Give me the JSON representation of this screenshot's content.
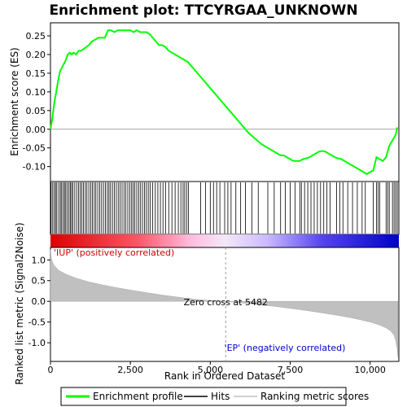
{
  "chart_data": {
    "type": "line",
    "title": "Enrichment plot: TTCYRGAA_UNKNOWN",
    "xlabel": "Rank in Ordered Dataset",
    "ylabel_top": "Enrichment score (ES)",
    "ylabel_bottom": "Ranked list metric (Signal2Noise)",
    "x_range": [
      0,
      10900
    ],
    "x_ticks": [
      0,
      2500,
      5000,
      7500,
      10000
    ],
    "x_tick_labels": [
      "0",
      "2,500",
      "5,000",
      "7,500",
      "10,000"
    ],
    "es_ylim": [
      -0.14,
      0.285
    ],
    "es_ticks": [
      -0.1,
      -0.05,
      0.0,
      0.05,
      0.1,
      0.15,
      0.2,
      0.25
    ],
    "es_tick_labels": [
      "-0.10",
      "-0.05",
      "0.00",
      "0.05",
      "0.10",
      "0.15",
      "0.20",
      "0.25"
    ],
    "metric_ylim": [
      -1.45,
      1.3
    ],
    "metric_ticks": [
      -1.0,
      -0.5,
      0.0,
      0.5,
      1.0
    ],
    "metric_tick_labels": [
      "-1.0",
      "-0.5",
      "0.0",
      "0.5",
      "1.0"
    ],
    "grid": false,
    "enrichment_profile": {
      "name": "Enrichment profile",
      "color": "#00ff00",
      "x": [
        0,
        60,
        120,
        180,
        240,
        300,
        360,
        420,
        480,
        540,
        600,
        660,
        720,
        800,
        880,
        960,
        1040,
        1120,
        1200,
        1300,
        1400,
        1500,
        1600,
        1700,
        1800,
        1900,
        2000,
        2100,
        2200,
        2300,
        2400,
        2500,
        2600,
        2700,
        2800,
        2900,
        3000,
        3100,
        3200,
        3300,
        3400,
        3500,
        3600,
        3700,
        3800,
        3900,
        4000,
        4100,
        4200,
        4300,
        4400,
        4600,
        4800,
        5000,
        5200,
        5400,
        5600,
        5800,
        6000,
        6200,
        6400,
        6600,
        6800,
        7000,
        7100,
        7200,
        7300,
        7400,
        7500,
        7600,
        7700,
        7800,
        7900,
        8000,
        8100,
        8200,
        8300,
        8400,
        8500,
        8600,
        8700,
        8800,
        8900,
        9000,
        9100,
        9200,
        9300,
        9400,
        9500,
        9600,
        9700,
        9800,
        9900,
        10000,
        10100,
        10200,
        10300,
        10400,
        10500,
        10600,
        10700,
        10800,
        10850
      ],
      "y": [
        0.0,
        0.03,
        0.07,
        0.1,
        0.13,
        0.155,
        0.165,
        0.175,
        0.185,
        0.2,
        0.205,
        0.2,
        0.205,
        0.2,
        0.21,
        0.21,
        0.215,
        0.22,
        0.225,
        0.235,
        0.24,
        0.245,
        0.245,
        0.245,
        0.265,
        0.265,
        0.26,
        0.265,
        0.265,
        0.265,
        0.265,
        0.265,
        0.26,
        0.265,
        0.26,
        0.26,
        0.26,
        0.255,
        0.245,
        0.235,
        0.225,
        0.225,
        0.22,
        0.21,
        0.205,
        0.2,
        0.195,
        0.19,
        0.185,
        0.18,
        0.17,
        0.15,
        0.13,
        0.11,
        0.09,
        0.07,
        0.05,
        0.03,
        0.01,
        -0.01,
        -0.025,
        -0.04,
        -0.05,
        -0.06,
        -0.065,
        -0.07,
        -0.07,
        -0.075,
        -0.08,
        -0.085,
        -0.085,
        -0.085,
        -0.08,
        -0.078,
        -0.075,
        -0.07,
        -0.065,
        -0.06,
        -0.058,
        -0.06,
        -0.065,
        -0.07,
        -0.075,
        -0.078,
        -0.08,
        -0.085,
        -0.09,
        -0.095,
        -0.1,
        -0.105,
        -0.11,
        -0.115,
        -0.12,
        -0.115,
        -0.11,
        -0.075,
        -0.08,
        -0.085,
        -0.075,
        -0.045,
        -0.03,
        -0.015,
        0.005
      ]
    },
    "hits_label": "Hits",
    "hit_ranks": [
      20,
      70,
      120,
      160,
      200,
      260,
      310,
      350,
      400,
      440,
      480,
      530,
      580,
      620,
      660,
      700,
      760,
      820,
      880,
      930,
      980,
      1030,
      1090,
      1140,
      1200,
      1260,
      1310,
      1370,
      1420,
      1480,
      1540,
      1600,
      1660,
      1720,
      1780,
      1830,
      1880,
      1940,
      2000,
      2060,
      2120,
      2180,
      2240,
      2300,
      2360,
      2420,
      2480,
      2540,
      2590,
      2640,
      2700,
      2760,
      2820,
      2880,
      2940,
      3000,
      3060,
      3120,
      3200,
      3280,
      3360,
      3440,
      3520,
      3600,
      3700,
      3800,
      3900,
      4000,
      4080,
      4150,
      4200,
      4260,
      4320,
      4700,
      4850,
      5000,
      5100,
      5200,
      5300,
      5450,
      5550,
      5650,
      5800,
      5950,
      6100,
      6300,
      6500,
      6800,
      7000,
      7200,
      7350,
      7500,
      7650,
      7800,
      7850,
      7950,
      8050,
      8150,
      8250,
      8350,
      8450,
      8550,
      8650,
      8750,
      8950,
      9050,
      9150,
      9300,
      9450,
      9600,
      9750,
      9850,
      10100,
      10200,
      10250,
      10300,
      10500,
      10550,
      10600,
      10700,
      10750,
      10800,
      10850
    ],
    "metric_label": "Ranking metric scores",
    "metric_x": [
      0,
      30,
      100,
      250,
      500,
      800,
      1200,
      1600,
      2000,
      2500,
      3000,
      3500,
      4000,
      4500,
      5000,
      5482,
      6000,
      6500,
      7000,
      7500,
      8000,
      8500,
      9000,
      9500,
      10000,
      10300,
      10500,
      10650,
      10750,
      10800,
      10850,
      10870
    ],
    "metric_y": [
      1.25,
      1.02,
      0.88,
      0.75,
      0.65,
      0.56,
      0.47,
      0.4,
      0.34,
      0.27,
      0.21,
      0.15,
      0.1,
      0.05,
      0.02,
      0.0,
      -0.04,
      -0.08,
      -0.12,
      -0.17,
      -0.22,
      -0.28,
      -0.34,
      -0.41,
      -0.5,
      -0.57,
      -0.64,
      -0.72,
      -0.82,
      -0.95,
      -1.15,
      -1.35
    ],
    "zero_cross_rank": 5482,
    "zero_cross_label": "Zero cross at 5482",
    "pos_label": "'IUP' (positively correlated)",
    "neg_label": "'EP' (negatively correlated)",
    "pos_color": "#cc0000",
    "neg_color": "#0000cc",
    "legend_entries": [
      "Enrichment profile",
      "Hits",
      "Ranking metric scores"
    ],
    "legend_placement": "bottom"
  }
}
